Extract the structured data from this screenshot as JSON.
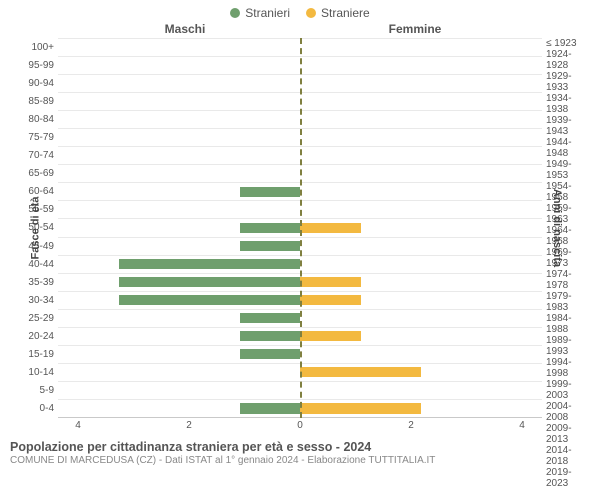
{
  "legend": {
    "male": {
      "label": "Stranieri",
      "color": "#6f9f6d"
    },
    "female": {
      "label": "Straniere",
      "color": "#f3b940"
    }
  },
  "headers": {
    "left": "Maschi",
    "right": "Femmine"
  },
  "axis": {
    "left_title": "Fasce di età",
    "right_title": "Anni di nascita"
  },
  "x": {
    "max": 4,
    "ticks": [
      4,
      2,
      0,
      2,
      4
    ]
  },
  "colors": {
    "male_bar": "#6f9f6d",
    "female_bar": "#f3b940",
    "grid": "#e9e9e9",
    "center": "#808040"
  },
  "rows": [
    {
      "age": "100+",
      "birth": "≤ 1923",
      "m": 0,
      "f": 0
    },
    {
      "age": "95-99",
      "birth": "1924-1928",
      "m": 0,
      "f": 0
    },
    {
      "age": "90-94",
      "birth": "1929-1933",
      "m": 0,
      "f": 0
    },
    {
      "age": "85-89",
      "birth": "1934-1938",
      "m": 0,
      "f": 0
    },
    {
      "age": "80-84",
      "birth": "1939-1943",
      "m": 0,
      "f": 0
    },
    {
      "age": "75-79",
      "birth": "1944-1948",
      "m": 0,
      "f": 0
    },
    {
      "age": "70-74",
      "birth": "1949-1953",
      "m": 0,
      "f": 0
    },
    {
      "age": "65-69",
      "birth": "1954-1958",
      "m": 0,
      "f": 0
    },
    {
      "age": "60-64",
      "birth": "1959-1963",
      "m": 1,
      "f": 0
    },
    {
      "age": "55-59",
      "birth": "1964-1968",
      "m": 0,
      "f": 0
    },
    {
      "age": "50-54",
      "birth": "1969-1973",
      "m": 1,
      "f": 1
    },
    {
      "age": "45-49",
      "birth": "1974-1978",
      "m": 1,
      "f": 0
    },
    {
      "age": "40-44",
      "birth": "1979-1983",
      "m": 3,
      "f": 0
    },
    {
      "age": "35-39",
      "birth": "1984-1988",
      "m": 3,
      "f": 1
    },
    {
      "age": "30-34",
      "birth": "1989-1993",
      "m": 3,
      "f": 1
    },
    {
      "age": "25-29",
      "birth": "1994-1998",
      "m": 1,
      "f": 0
    },
    {
      "age": "20-24",
      "birth": "1999-2003",
      "m": 1,
      "f": 1
    },
    {
      "age": "15-19",
      "birth": "2004-2008",
      "m": 1,
      "f": 0
    },
    {
      "age": "10-14",
      "birth": "2009-2013",
      "m": 0,
      "f": 2
    },
    {
      "age": "5-9",
      "birth": "2014-2018",
      "m": 0,
      "f": 0
    },
    {
      "age": "0-4",
      "birth": "2019-2023",
      "m": 1,
      "f": 2
    }
  ],
  "footer": {
    "title": "Popolazione per cittadinanza straniera per età e sesso - 2024",
    "subtitle": "COMUNE DI MARCEDUSA (CZ) - Dati ISTAT al 1° gennaio 2024 - Elaborazione TUTTITALIA.IT"
  }
}
